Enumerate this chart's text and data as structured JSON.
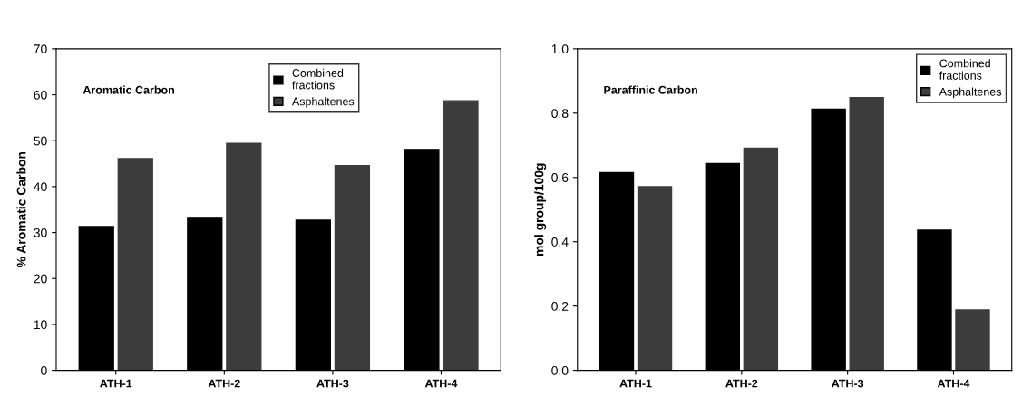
{
  "chart_data": [
    {
      "type": "bar",
      "title": "Aromatic Carbon",
      "ylabel": "% Aromatic Carbon",
      "categories": [
        "ATH-1",
        "ATH-2",
        "ATH-3",
        "ATH-4"
      ],
      "series": [
        {
          "name": "Combined\nfractions",
          "color": "#000000",
          "values": [
            31.3,
            33.3,
            32.7,
            48.1
          ]
        },
        {
          "name": "Asphaltenes",
          "color": "#3c3c3c",
          "values": [
            46.1,
            49.4,
            44.6,
            58.7
          ]
        }
      ],
      "ylim": [
        0,
        70
      ],
      "yticks": [
        0,
        10,
        20,
        30,
        40,
        50,
        60,
        70
      ],
      "grid": false,
      "legend": "top"
    },
    {
      "type": "bar",
      "title": "Paraffinic Carbon",
      "ylabel": "mol group/100g",
      "categories": [
        "ATH-1",
        "ATH-2",
        "ATH-3",
        "ATH-4"
      ],
      "series": [
        {
          "name": "Combined\nfractions",
          "color": "#000000",
          "values": [
            0.615,
            0.643,
            0.812,
            0.436
          ]
        },
        {
          "name": "Asphaltenes",
          "color": "#3c3c3c",
          "values": [
            0.571,
            0.691,
            0.848,
            0.188
          ]
        }
      ],
      "ylim": [
        0,
        1.0
      ],
      "yticks": [
        {
          "value": 0,
          "label": "0.0"
        },
        0.2,
        0.4,
        0.6,
        0.8,
        {
          "value": 1.0,
          "label": "1.0"
        }
      ],
      "grid": false,
      "legend": "top right"
    }
  ]
}
